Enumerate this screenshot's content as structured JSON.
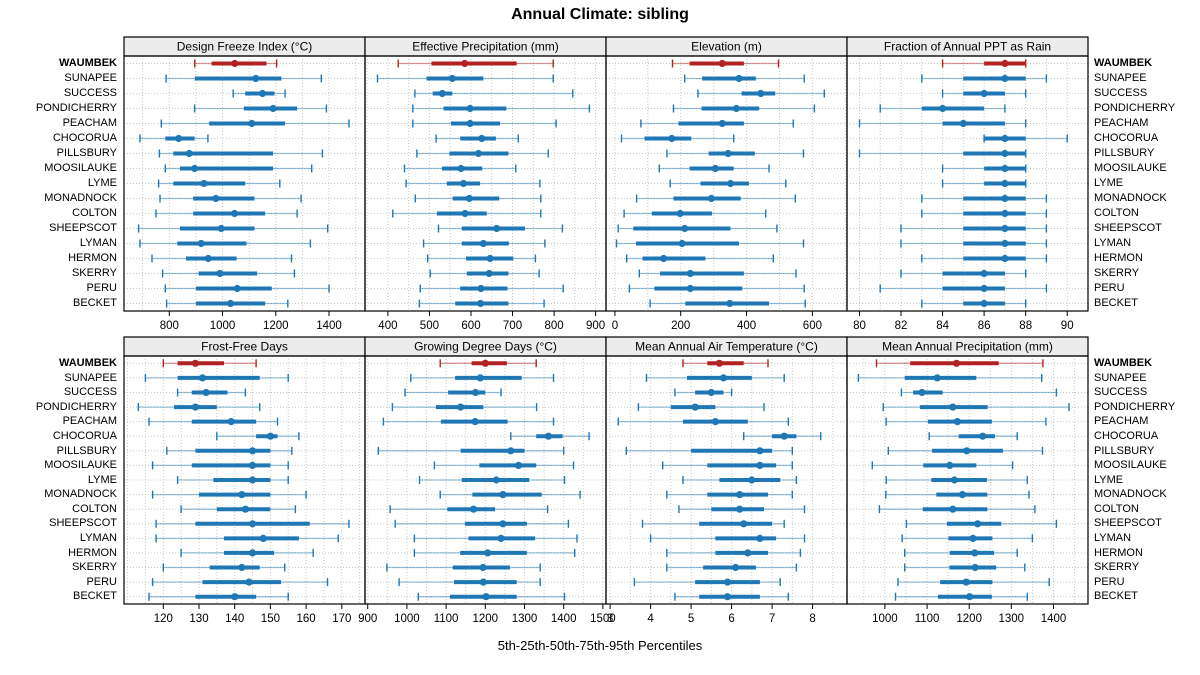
{
  "title": "Annual Climate: sibling",
  "xlabel": "5th-25th-50th-75th-95th Percentiles",
  "colors": {
    "highlight": "#B22222",
    "normal": "#1F77B4",
    "strip_bg": "#ECECEC",
    "panel_border": "#000000",
    "grid": "#C8C8C8",
    "text": "#000000"
  },
  "sites": [
    "WAUMBEK",
    "SUNAPEE",
    "SUCCESS",
    "PONDICHERRY",
    "PEACHAM",
    "CHOCORUA",
    "PILLSBURY",
    "MOOSILAUKE",
    "LYME",
    "MONADNOCK",
    "COLTON",
    "SHEEPSCOT",
    "LYMAN",
    "HERMON",
    "SKERRY",
    "PERU",
    "BECKET"
  ],
  "chart_data": {
    "type": "dotplot-percentiles",
    "percentile_labels": [
      "5th",
      "25th",
      "50th",
      "75th",
      "95th"
    ],
    "highlight_site": "WAUMBEK",
    "layout": {
      "rows": 2,
      "cols": 4,
      "legend": "none",
      "grid": "dotted"
    },
    "panels": [
      {
        "title": "Design Freeze Index (°C)",
        "ticks": [
          800,
          1000,
          1200,
          1400
        ],
        "xlim": [
          630,
          1535
        ],
        "values": [
          [
            896,
            959,
            1046,
            1165,
            1203
          ],
          [
            788,
            896,
            1125,
            1221,
            1371
          ],
          [
            1040,
            1085,
            1150,
            1195,
            1235
          ],
          [
            895,
            1080,
            1190,
            1280,
            1390
          ],
          [
            770,
            950,
            1110,
            1235,
            1475
          ],
          [
            690,
            785,
            835,
            895,
            945
          ],
          [
            763,
            815,
            875,
            1190,
            1375
          ],
          [
            785,
            840,
            895,
            1190,
            1335
          ],
          [
            760,
            815,
            930,
            1085,
            1215
          ],
          [
            765,
            890,
            975,
            1120,
            1295
          ],
          [
            750,
            890,
            1045,
            1160,
            1280
          ],
          [
            685,
            840,
            995,
            1120,
            1395
          ],
          [
            690,
            830,
            920,
            1090,
            1330
          ],
          [
            735,
            863,
            946,
            1053,
            1259
          ],
          [
            775,
            910,
            990,
            1130,
            1270
          ],
          [
            785,
            900,
            1055,
            1185,
            1400
          ],
          [
            790,
            900,
            1030,
            1160,
            1245
          ]
        ]
      },
      {
        "title": "Effective Precipitation (mm)",
        "ticks": [
          400,
          500,
          600,
          700,
          800,
          900
        ],
        "xlim": [
          345,
          925
        ],
        "values": [
          [
            425,
            505,
            585,
            710,
            798
          ],
          [
            375,
            493,
            555,
            630,
            798
          ],
          [
            465,
            508,
            531,
            555,
            845
          ],
          [
            460,
            534,
            598,
            685,
            885
          ],
          [
            460,
            552,
            598,
            670,
            805
          ],
          [
            516,
            574,
            626,
            660,
            714
          ],
          [
            470,
            548,
            618,
            690,
            786
          ],
          [
            440,
            530,
            576,
            627,
            708
          ],
          [
            444,
            542,
            582,
            622,
            766
          ],
          [
            466,
            556,
            596,
            668,
            768
          ],
          [
            412,
            518,
            586,
            638,
            768
          ],
          [
            522,
            578,
            662,
            730,
            820
          ],
          [
            486,
            578,
            630,
            691,
            778
          ],
          [
            496,
            588,
            646,
            702,
            755
          ],
          [
            502,
            590,
            644,
            690,
            764
          ],
          [
            478,
            574,
            624,
            688,
            822
          ],
          [
            476,
            562,
            623,
            690,
            776
          ]
        ]
      },
      {
        "title": "Elevation (m)",
        "ticks": [
          0,
          200,
          400,
          600
        ],
        "xlim": [
          -27,
          705
        ],
        "values": [
          [
            175,
            227,
            326,
            392,
            497
          ],
          [
            212,
            265,
            377,
            428,
            575
          ],
          [
            252,
            385,
            443,
            487,
            636
          ],
          [
            178,
            263,
            369,
            438,
            606
          ],
          [
            79,
            193,
            326,
            392,
            542
          ],
          [
            20,
            90,
            173,
            232,
            361
          ],
          [
            158,
            285,
            344,
            425,
            573
          ],
          [
            135,
            227,
            305,
            361,
            468
          ],
          [
            168,
            260,
            351,
            407,
            519
          ],
          [
            66,
            178,
            293,
            382,
            548
          ],
          [
            28,
            112,
            198,
            295,
            458
          ],
          [
            10,
            56,
            212,
            351,
            492
          ],
          [
            5,
            64,
            204,
            377,
            573
          ],
          [
            36,
            84,
            148,
            275,
            481
          ],
          [
            74,
            137,
            229,
            392,
            550
          ],
          [
            44,
            120,
            229,
            387,
            575
          ],
          [
            107,
            214,
            349,
            468,
            578
          ]
        ]
      },
      {
        "title": "Fraction of Annual PPT as Rain",
        "ticks": [
          80,
          82,
          84,
          86,
          88,
          90
        ],
        "xlim": [
          79.4,
          91
        ],
        "values": [
          [
            84,
            86,
            87,
            88,
            88
          ],
          [
            83,
            85,
            87,
            88,
            89
          ],
          [
            84,
            85,
            86,
            87,
            88
          ],
          [
            81,
            83,
            84,
            86,
            87
          ],
          [
            80,
            84,
            85,
            87,
            88
          ],
          [
            86,
            86,
            87,
            88,
            90
          ],
          [
            80,
            85,
            87,
            88,
            88
          ],
          [
            84,
            86,
            87,
            88,
            88
          ],
          [
            84,
            86,
            87,
            88,
            88
          ],
          [
            83,
            85,
            87,
            88,
            89
          ],
          [
            83,
            85,
            87,
            88,
            89
          ],
          [
            82,
            85,
            87,
            88,
            89
          ],
          [
            82,
            85,
            87,
            88,
            89
          ],
          [
            83,
            85,
            87,
            88,
            89
          ],
          [
            82,
            84,
            86,
            87,
            88
          ],
          [
            81,
            84,
            86,
            87,
            89
          ],
          [
            83,
            85,
            86,
            87,
            88
          ]
        ]
      },
      {
        "title": "Frost-Free Days",
        "ticks": [
          120,
          130,
          140,
          150,
          160,
          170
        ],
        "xlim": [
          109,
          176.5
        ],
        "values": [
          [
            120,
            124,
            129,
            137,
            146
          ],
          [
            115,
            124,
            131,
            147,
            155
          ],
          [
            124,
            128,
            132,
            138,
            143
          ],
          [
            113,
            123,
            129,
            135,
            147
          ],
          [
            116,
            128,
            139,
            146,
            152
          ],
          [
            135,
            146,
            150,
            152,
            158
          ],
          [
            121,
            129,
            145,
            150,
            156
          ],
          [
            117,
            128,
            145,
            150,
            155
          ],
          [
            124,
            134,
            145,
            150,
            155
          ],
          [
            117,
            130,
            142,
            150,
            160
          ],
          [
            125,
            135,
            143,
            150,
            157
          ],
          [
            118,
            129,
            145,
            161,
            172
          ],
          [
            118,
            137,
            148,
            158,
            169
          ],
          [
            125,
            137,
            145,
            151,
            162
          ],
          [
            120,
            133,
            142,
            147,
            154
          ],
          [
            117,
            131,
            144,
            153,
            166
          ],
          [
            116,
            129,
            140,
            146,
            155
          ]
        ]
      },
      {
        "title": "Growing Degree Days (°C)",
        "ticks": [
          900,
          1000,
          1100,
          1200,
          1300,
          1400,
          1500
        ],
        "xlim": [
          893,
          1508
        ],
        "values": [
          [
            1085,
            1165,
            1200,
            1255,
            1330
          ],
          [
            1010,
            1123,
            1187,
            1293,
            1374
          ],
          [
            995,
            1105,
            1175,
            1200,
            1240
          ],
          [
            963,
            1074,
            1137,
            1195,
            1331
          ],
          [
            940,
            1087,
            1174,
            1257,
            1374
          ],
          [
            1265,
            1330,
            1361,
            1397,
            1465
          ],
          [
            927,
            1137,
            1265,
            1300,
            1400
          ],
          [
            1070,
            1185,
            1285,
            1330,
            1425
          ],
          [
            1032,
            1140,
            1228,
            1312,
            1402
          ],
          [
            1085,
            1167,
            1245,
            1344,
            1442
          ],
          [
            957,
            1103,
            1170,
            1225,
            1359
          ],
          [
            970,
            1148,
            1245,
            1306,
            1412
          ],
          [
            1019,
            1157,
            1240,
            1327,
            1434
          ],
          [
            1019,
            1136,
            1206,
            1306,
            1428
          ],
          [
            949,
            1117,
            1194,
            1263,
            1340
          ],
          [
            980,
            1120,
            1195,
            1280,
            1340
          ],
          [
            1029,
            1110,
            1202,
            1280,
            1402
          ]
        ]
      },
      {
        "title": "Mean Annual Air Temperature (°C)",
        "ticks": [
          3,
          4,
          5,
          6,
          7,
          8
        ],
        "xlim": [
          2.9,
          8.85
        ],
        "values": [
          [
            4.8,
            5.4,
            5.7,
            6.3,
            6.9
          ],
          [
            3.9,
            4.9,
            5.8,
            6.5,
            7.3
          ],
          [
            4.6,
            5.1,
            5.5,
            5.8,
            6.0
          ],
          [
            3.7,
            4.5,
            5.1,
            5.6,
            6.8
          ],
          [
            3.2,
            4.8,
            5.6,
            6.4,
            7.4
          ],
          [
            6.3,
            7.0,
            7.3,
            7.6,
            8.2
          ],
          [
            3.4,
            5.0,
            6.7,
            7.0,
            7.5
          ],
          [
            4.3,
            5.4,
            6.7,
            7.1,
            7.5
          ],
          [
            4.8,
            5.7,
            6.5,
            7.2,
            7.6
          ],
          [
            4.4,
            5.4,
            6.2,
            6.9,
            7.5
          ],
          [
            4.7,
            5.5,
            6.2,
            6.8,
            7.8
          ],
          [
            3.8,
            5.2,
            6.3,
            7.0,
            7.3
          ],
          [
            4.0,
            5.6,
            6.7,
            7.1,
            7.8
          ],
          [
            4.4,
            5.6,
            6.4,
            6.9,
            7.7
          ],
          [
            4.4,
            5.3,
            6.1,
            6.6,
            7.6
          ],
          [
            3.6,
            5.1,
            5.9,
            6.7,
            7.2
          ],
          [
            4.6,
            5.2,
            5.9,
            6.7,
            7.4
          ]
        ]
      },
      {
        "title": "Mean Annual Precipitation (mm)",
        "ticks": [
          1000,
          1100,
          1200,
          1300,
          1400
        ],
        "xlim": [
          910,
          1482
        ],
        "values": [
          [
            980,
            1060,
            1170,
            1270,
            1375
          ],
          [
            937,
            1047,
            1124,
            1217,
            1372
          ],
          [
            1039,
            1067,
            1088,
            1137,
            1407
          ],
          [
            996,
            1083,
            1161,
            1244,
            1437
          ],
          [
            1003,
            1102,
            1172,
            1254,
            1382
          ],
          [
            1105,
            1175,
            1232,
            1261,
            1314
          ],
          [
            1008,
            1112,
            1194,
            1280,
            1374
          ],
          [
            970,
            1091,
            1154,
            1217,
            1303
          ],
          [
            1003,
            1110,
            1165,
            1242,
            1338
          ],
          [
            1002,
            1122,
            1184,
            1243,
            1342
          ],
          [
            987,
            1090,
            1161,
            1243,
            1356
          ],
          [
            1051,
            1147,
            1220,
            1276,
            1407
          ],
          [
            1041,
            1151,
            1209,
            1255,
            1350
          ],
          [
            1047,
            1154,
            1213,
            1259,
            1314
          ],
          [
            1047,
            1153,
            1214,
            1264,
            1332
          ],
          [
            1031,
            1131,
            1193,
            1255,
            1390
          ],
          [
            1025,
            1126,
            1201,
            1254,
            1338
          ]
        ]
      }
    ]
  }
}
